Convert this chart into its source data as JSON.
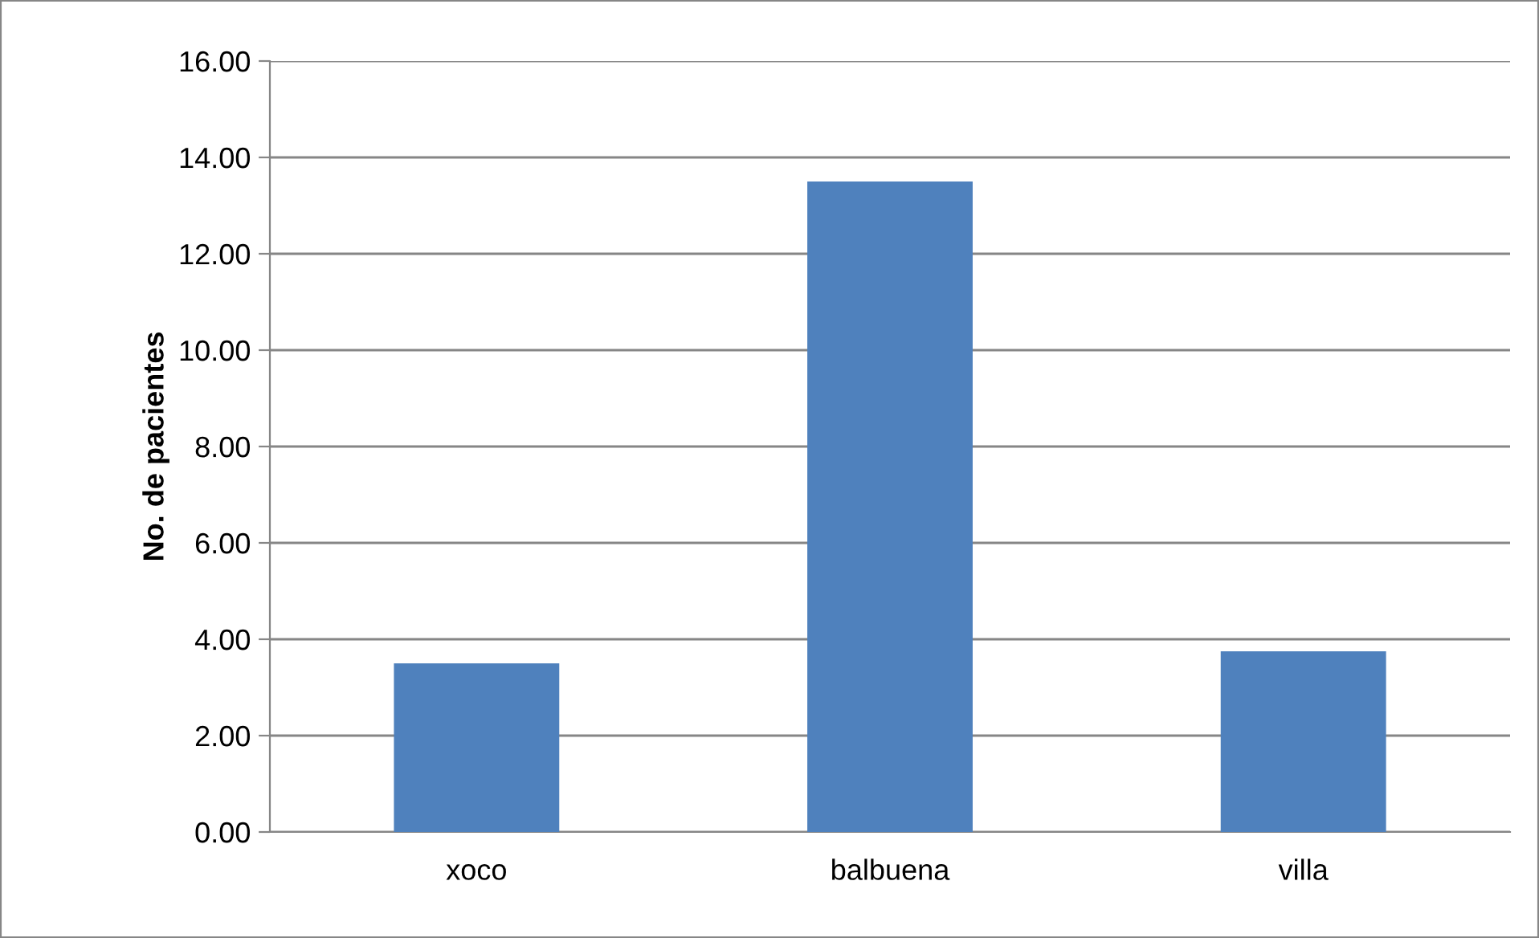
{
  "chart_data": {
    "type": "bar",
    "ylabel": "No. de pacientes",
    "categories": [
      "xoco",
      "balbuena",
      "villa"
    ],
    "values": [
      3.5,
      13.5,
      3.75
    ],
    "color": "#4f81bd",
    "ylim": [
      0,
      16
    ],
    "yticks": [
      {
        "value": 0,
        "label": "0.00"
      },
      {
        "value": 2,
        "label": "2.00"
      },
      {
        "value": 4,
        "label": "4.00"
      },
      {
        "value": 6,
        "label": "6.00"
      },
      {
        "value": 8,
        "label": "8.00"
      },
      {
        "value": 10,
        "label": "10.00"
      },
      {
        "value": 12,
        "label": "12.00"
      },
      {
        "value": 14,
        "label": "14.00"
      },
      {
        "value": 16,
        "label": "16.00"
      }
    ],
    "grid": "y"
  }
}
